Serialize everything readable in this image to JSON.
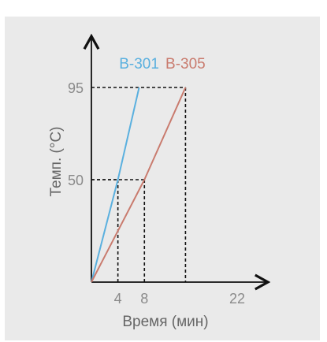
{
  "chart_data": {
    "type": "line",
    "xlabel": "Время (мин)",
    "ylabel": "Темп. (°C)",
    "x_ticks": [
      4,
      8,
      22
    ],
    "y_ticks": [
      50,
      95
    ],
    "xlim": [
      0,
      25
    ],
    "ylim": [
      0,
      120
    ],
    "grid": false,
    "series": [
      {
        "name": "B-301",
        "color": "#5ab0df",
        "x": [
          0,
          4,
          7.2
        ],
        "y": [
          0,
          50,
          95
        ]
      },
      {
        "name": "B-305",
        "color": "#c97b6e",
        "x": [
          0,
          8,
          14.2
        ],
        "y": [
          0,
          50,
          95
        ]
      }
    ],
    "guides": [
      {
        "x": 4,
        "y": 50
      },
      {
        "x": 8,
        "y": 50
      },
      {
        "x": 14.2,
        "y": 95
      }
    ]
  }
}
